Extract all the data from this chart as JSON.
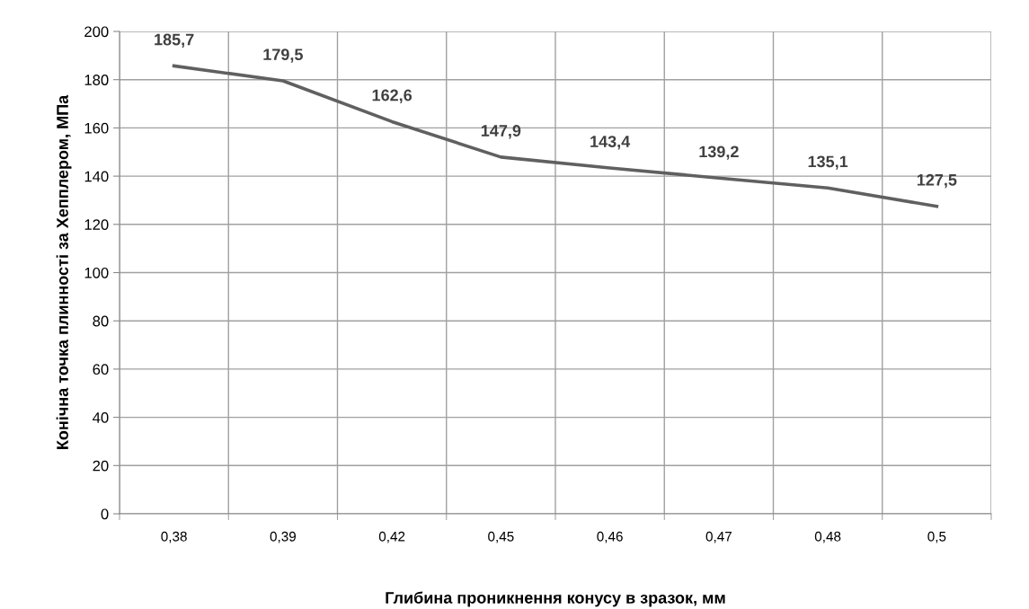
{
  "chart_data": {
    "type": "line",
    "xlabel": "Глибина проникнення конусу в зразок, мм",
    "ylabel": "Конічна точка плинності за Хепплером, МПа",
    "categories": [
      "0,38",
      "0,39",
      "0,42",
      "0,45",
      "0,46",
      "0,47",
      "0,48",
      "0,5"
    ],
    "series": [
      {
        "color": "#606060",
        "values": [
          185.7,
          179.5,
          162.6,
          147.9,
          143.4,
          139.2,
          135.1,
          127.5
        ],
        "value_labels": [
          "185,7",
          "179,5",
          "162,6",
          "147,9",
          "143,4",
          "139,2",
          "135,1",
          "127,5"
        ]
      }
    ],
    "ylim": [
      0,
      200
    ],
    "yticks": [
      0,
      20,
      40,
      60,
      80,
      100,
      120,
      140,
      160,
      180,
      200
    ],
    "grid": true,
    "marker": "none",
    "line_style": "solid"
  }
}
